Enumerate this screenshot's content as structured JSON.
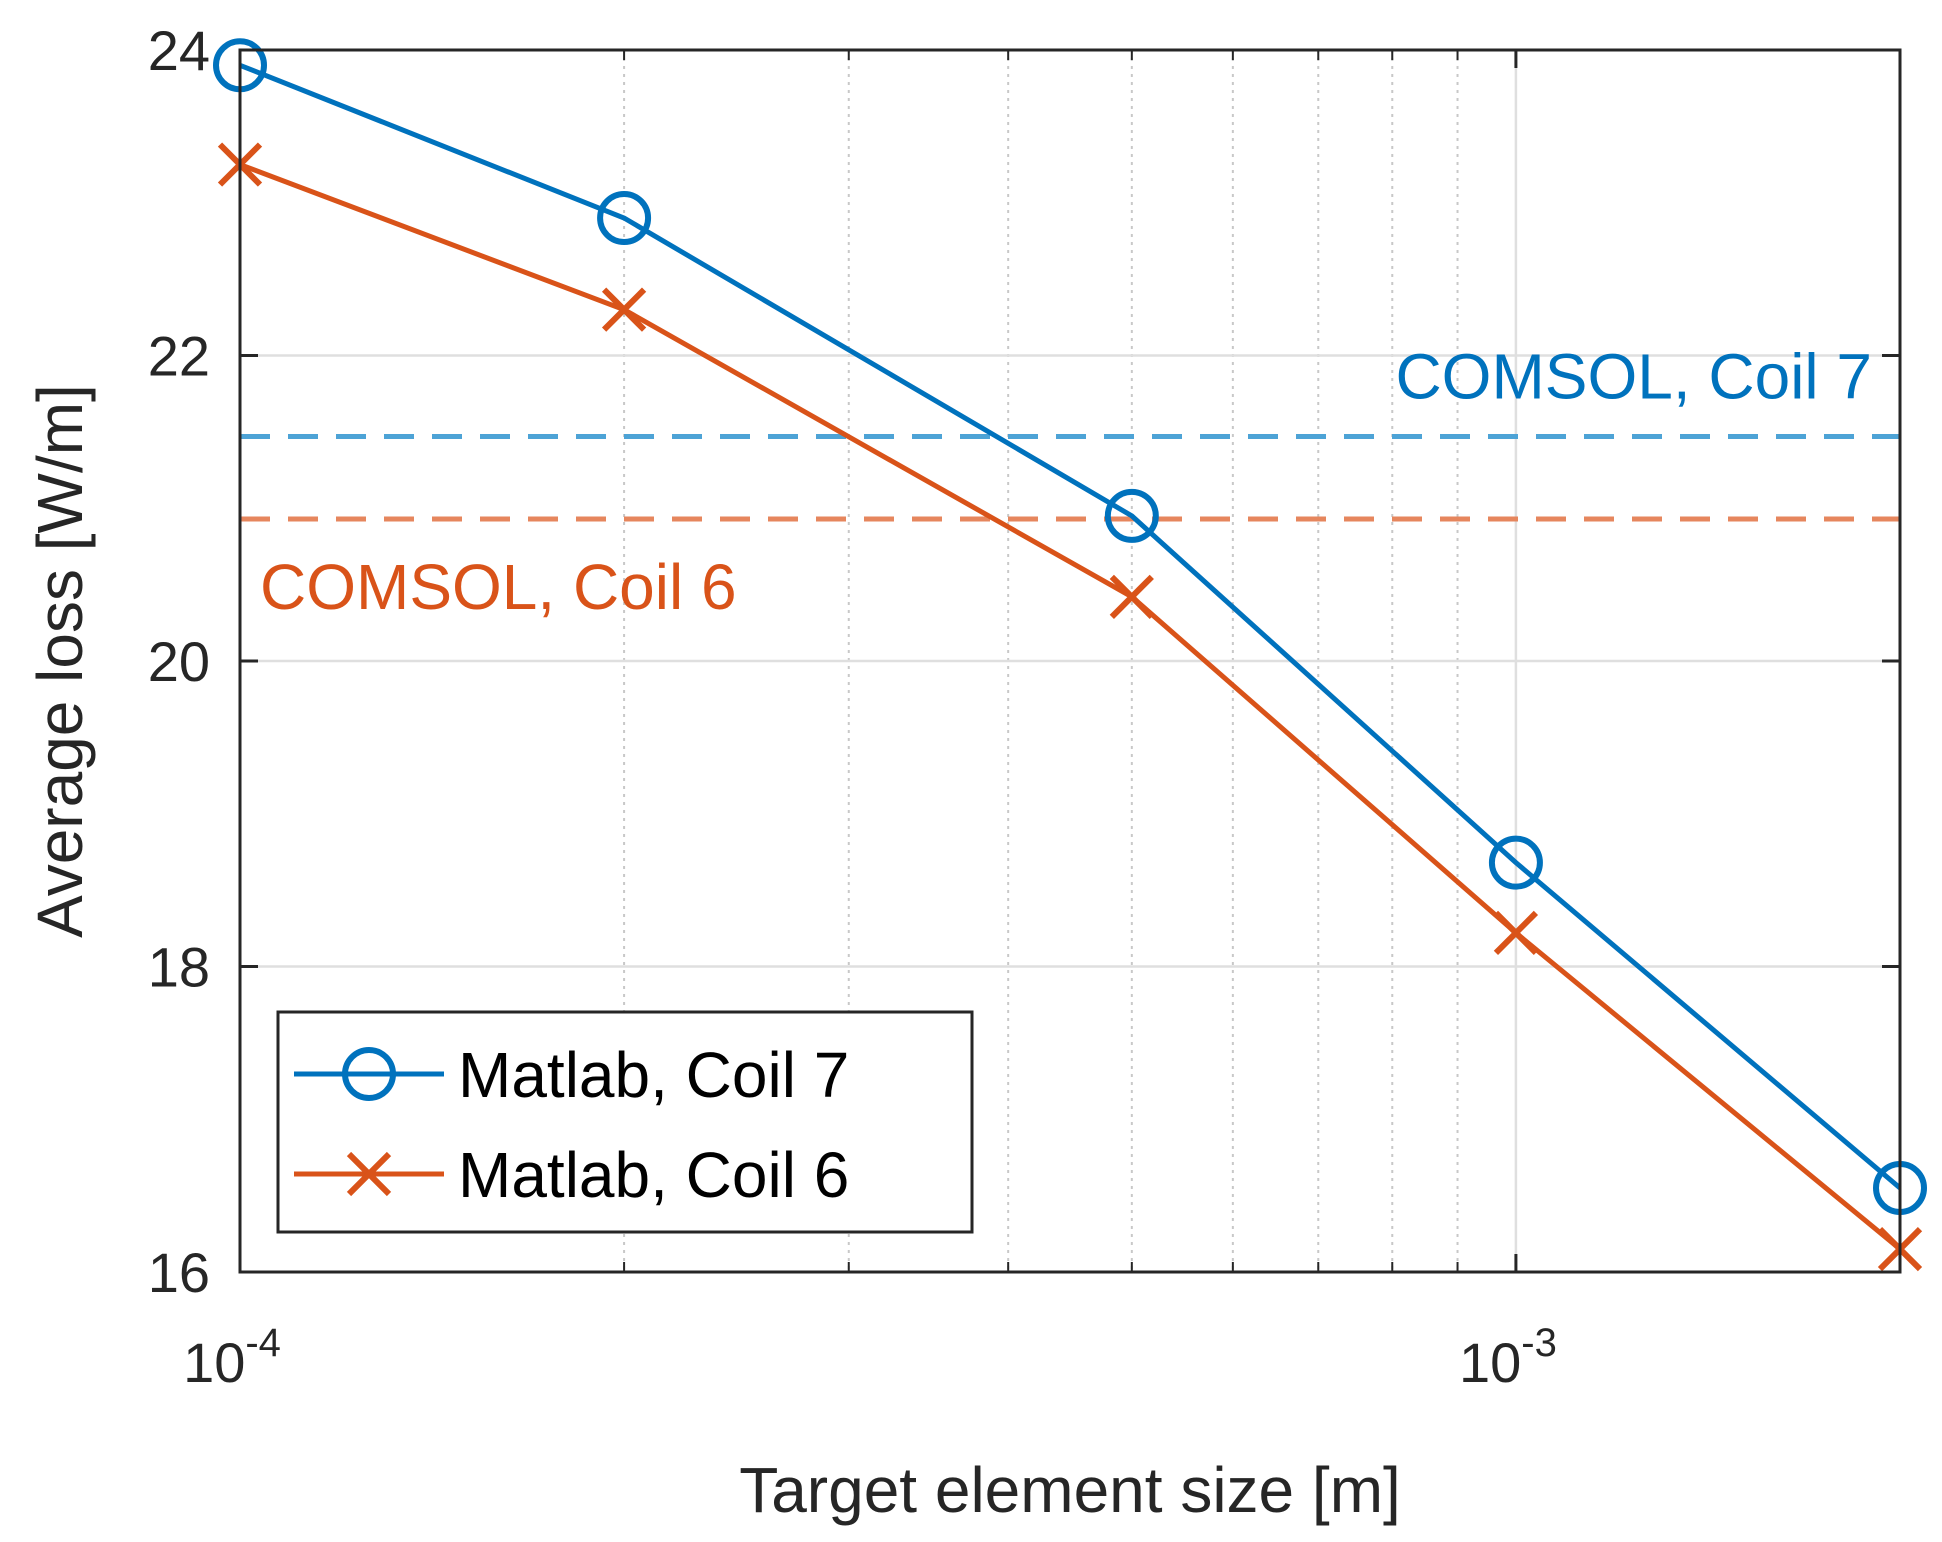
{
  "chart_data": {
    "type": "line",
    "xlabel": "Target element size [m]",
    "ylabel": "Average loss [W/m]",
    "x_scale": "log",
    "xlim": [
      0.0001,
      0.002
    ],
    "ylim": [
      16,
      24
    ],
    "x_ticks": [
      {
        "value": 0.0001,
        "base": "10",
        "exponent": "-4"
      },
      {
        "value": 0.001,
        "base": "10",
        "exponent": "-3"
      }
    ],
    "y_ticks": [
      16,
      18,
      20,
      22,
      24
    ],
    "grid": true,
    "minor_grid_x": true,
    "legend_placement": "bottom-left",
    "colors": {
      "blue": "#0072BD",
      "orange": "#D95319",
      "light_blue": "#4DA3D6",
      "light_orange": "#E6865D"
    },
    "series": [
      {
        "name": "Matlab, Coil 7",
        "color": "#0072BD",
        "marker": "circle",
        "x": [
          0.0001,
          0.0002,
          0.0005,
          0.001,
          0.002
        ],
        "y": [
          23.9,
          22.9,
          20.95,
          18.68,
          16.55
        ]
      },
      {
        "name": "Matlab, Coil 6",
        "color": "#D95319",
        "marker": "x",
        "x": [
          0.0001,
          0.0002,
          0.0005,
          0.001,
          0.002
        ],
        "y": [
          23.25,
          22.3,
          20.42,
          18.22,
          16.15
        ]
      }
    ],
    "reference_lines": [
      {
        "label": "COMSOL, Coil 7",
        "y": 21.47,
        "color": "#4DA3D6",
        "label_color": "#0072BD"
      },
      {
        "label": "COMSOL, Coil 6",
        "y": 20.93,
        "color": "#E6865D",
        "label_color": "#D95319"
      }
    ]
  }
}
